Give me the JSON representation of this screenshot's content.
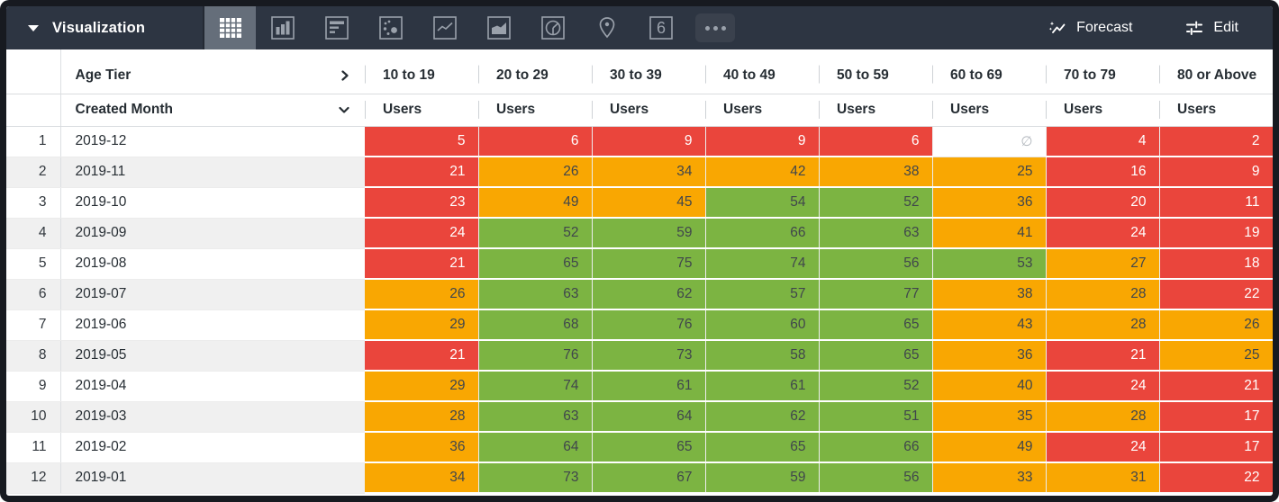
{
  "toolbar": {
    "title": "Visualization",
    "viz_types": [
      "table",
      "column-chart",
      "bar-chart",
      "scatter-plot",
      "line-chart",
      "area-chart",
      "pie-chart",
      "map",
      "single-value",
      "more"
    ],
    "single_value_icon_text": "6",
    "forecast_label": "Forecast",
    "edit_label": "Edit"
  },
  "table": {
    "pivot_label": "Age Tier",
    "dimension_label": "Created Month",
    "measure_label": "Users",
    "columns": [
      "10 to 19",
      "20 to 29",
      "30 to 39",
      "40 to 49",
      "50 to 59",
      "60 to 69",
      "70 to 79",
      "80 or Above"
    ],
    "null_symbol": "∅",
    "rows": [
      {
        "index": "1",
        "month": "2019-12",
        "cells": [
          {
            "v": "5",
            "c": "red"
          },
          {
            "v": "6",
            "c": "red"
          },
          {
            "v": "9",
            "c": "red"
          },
          {
            "v": "9",
            "c": "red"
          },
          {
            "v": "6",
            "c": "red"
          },
          {
            "v": "∅",
            "c": "null"
          },
          {
            "v": "4",
            "c": "red"
          },
          {
            "v": "2",
            "c": "red"
          }
        ]
      },
      {
        "index": "2",
        "month": "2019-11",
        "cells": [
          {
            "v": "21",
            "c": "red"
          },
          {
            "v": "26",
            "c": "orange"
          },
          {
            "v": "34",
            "c": "orange"
          },
          {
            "v": "42",
            "c": "orange"
          },
          {
            "v": "38",
            "c": "orange"
          },
          {
            "v": "25",
            "c": "orange"
          },
          {
            "v": "16",
            "c": "red"
          },
          {
            "v": "9",
            "c": "red"
          }
        ]
      },
      {
        "index": "3",
        "month": "2019-10",
        "cells": [
          {
            "v": "23",
            "c": "red"
          },
          {
            "v": "49",
            "c": "orange"
          },
          {
            "v": "45",
            "c": "orange"
          },
          {
            "v": "54",
            "c": "green"
          },
          {
            "v": "52",
            "c": "green"
          },
          {
            "v": "36",
            "c": "orange"
          },
          {
            "v": "20",
            "c": "red"
          },
          {
            "v": "11",
            "c": "red"
          }
        ]
      },
      {
        "index": "4",
        "month": "2019-09",
        "cells": [
          {
            "v": "24",
            "c": "red"
          },
          {
            "v": "52",
            "c": "green"
          },
          {
            "v": "59",
            "c": "green"
          },
          {
            "v": "66",
            "c": "green"
          },
          {
            "v": "63",
            "c": "green"
          },
          {
            "v": "41",
            "c": "orange"
          },
          {
            "v": "24",
            "c": "red"
          },
          {
            "v": "19",
            "c": "red"
          }
        ]
      },
      {
        "index": "5",
        "month": "2019-08",
        "cells": [
          {
            "v": "21",
            "c": "red"
          },
          {
            "v": "65",
            "c": "green"
          },
          {
            "v": "75",
            "c": "green"
          },
          {
            "v": "74",
            "c": "green"
          },
          {
            "v": "56",
            "c": "green"
          },
          {
            "v": "53",
            "c": "green"
          },
          {
            "v": "27",
            "c": "orange"
          },
          {
            "v": "18",
            "c": "red"
          }
        ]
      },
      {
        "index": "6",
        "month": "2019-07",
        "cells": [
          {
            "v": "26",
            "c": "orange"
          },
          {
            "v": "63",
            "c": "green"
          },
          {
            "v": "62",
            "c": "green"
          },
          {
            "v": "57",
            "c": "green"
          },
          {
            "v": "77",
            "c": "green"
          },
          {
            "v": "38",
            "c": "orange"
          },
          {
            "v": "28",
            "c": "orange"
          },
          {
            "v": "22",
            "c": "red"
          }
        ]
      },
      {
        "index": "7",
        "month": "2019-06",
        "cells": [
          {
            "v": "29",
            "c": "orange"
          },
          {
            "v": "68",
            "c": "green"
          },
          {
            "v": "76",
            "c": "green"
          },
          {
            "v": "60",
            "c": "green"
          },
          {
            "v": "65",
            "c": "green"
          },
          {
            "v": "43",
            "c": "orange"
          },
          {
            "v": "28",
            "c": "orange"
          },
          {
            "v": "26",
            "c": "orange"
          }
        ]
      },
      {
        "index": "8",
        "month": "2019-05",
        "cells": [
          {
            "v": "21",
            "c": "red"
          },
          {
            "v": "76",
            "c": "green"
          },
          {
            "v": "73",
            "c": "green"
          },
          {
            "v": "58",
            "c": "green"
          },
          {
            "v": "65",
            "c": "green"
          },
          {
            "v": "36",
            "c": "orange"
          },
          {
            "v": "21",
            "c": "red"
          },
          {
            "v": "25",
            "c": "orange"
          }
        ]
      },
      {
        "index": "9",
        "month": "2019-04",
        "cells": [
          {
            "v": "29",
            "c": "orange"
          },
          {
            "v": "74",
            "c": "green"
          },
          {
            "v": "61",
            "c": "green"
          },
          {
            "v": "61",
            "c": "green"
          },
          {
            "v": "52",
            "c": "green"
          },
          {
            "v": "40",
            "c": "orange"
          },
          {
            "v": "24",
            "c": "red"
          },
          {
            "v": "21",
            "c": "red"
          }
        ]
      },
      {
        "index": "10",
        "month": "2019-03",
        "cells": [
          {
            "v": "28",
            "c": "orange"
          },
          {
            "v": "63",
            "c": "green"
          },
          {
            "v": "64",
            "c": "green"
          },
          {
            "v": "62",
            "c": "green"
          },
          {
            "v": "51",
            "c": "green"
          },
          {
            "v": "35",
            "c": "orange"
          },
          {
            "v": "28",
            "c": "orange"
          },
          {
            "v": "17",
            "c": "red"
          }
        ]
      },
      {
        "index": "11",
        "month": "2019-02",
        "cells": [
          {
            "v": "36",
            "c": "orange"
          },
          {
            "v": "64",
            "c": "green"
          },
          {
            "v": "65",
            "c": "green"
          },
          {
            "v": "65",
            "c": "green"
          },
          {
            "v": "66",
            "c": "green"
          },
          {
            "v": "49",
            "c": "orange"
          },
          {
            "v": "24",
            "c": "red"
          },
          {
            "v": "17",
            "c": "red"
          }
        ]
      },
      {
        "index": "12",
        "month": "2019-01",
        "cells": [
          {
            "v": "34",
            "c": "orange"
          },
          {
            "v": "73",
            "c": "green"
          },
          {
            "v": "67",
            "c": "green"
          },
          {
            "v": "59",
            "c": "green"
          },
          {
            "v": "56",
            "c": "green"
          },
          {
            "v": "33",
            "c": "orange"
          },
          {
            "v": "31",
            "c": "orange"
          },
          {
            "v": "22",
            "c": "red"
          }
        ]
      }
    ]
  },
  "colors": {
    "red": "#EA453C",
    "orange": "#F9A702",
    "green": "#7CB442",
    "null_bg": "#FFFFFF",
    "cell_text_light": "#FFFFFF",
    "cell_text_dark": "#40464C",
    "null_text": "#B3B8BE",
    "toolbar_bg": "#2D3542"
  }
}
